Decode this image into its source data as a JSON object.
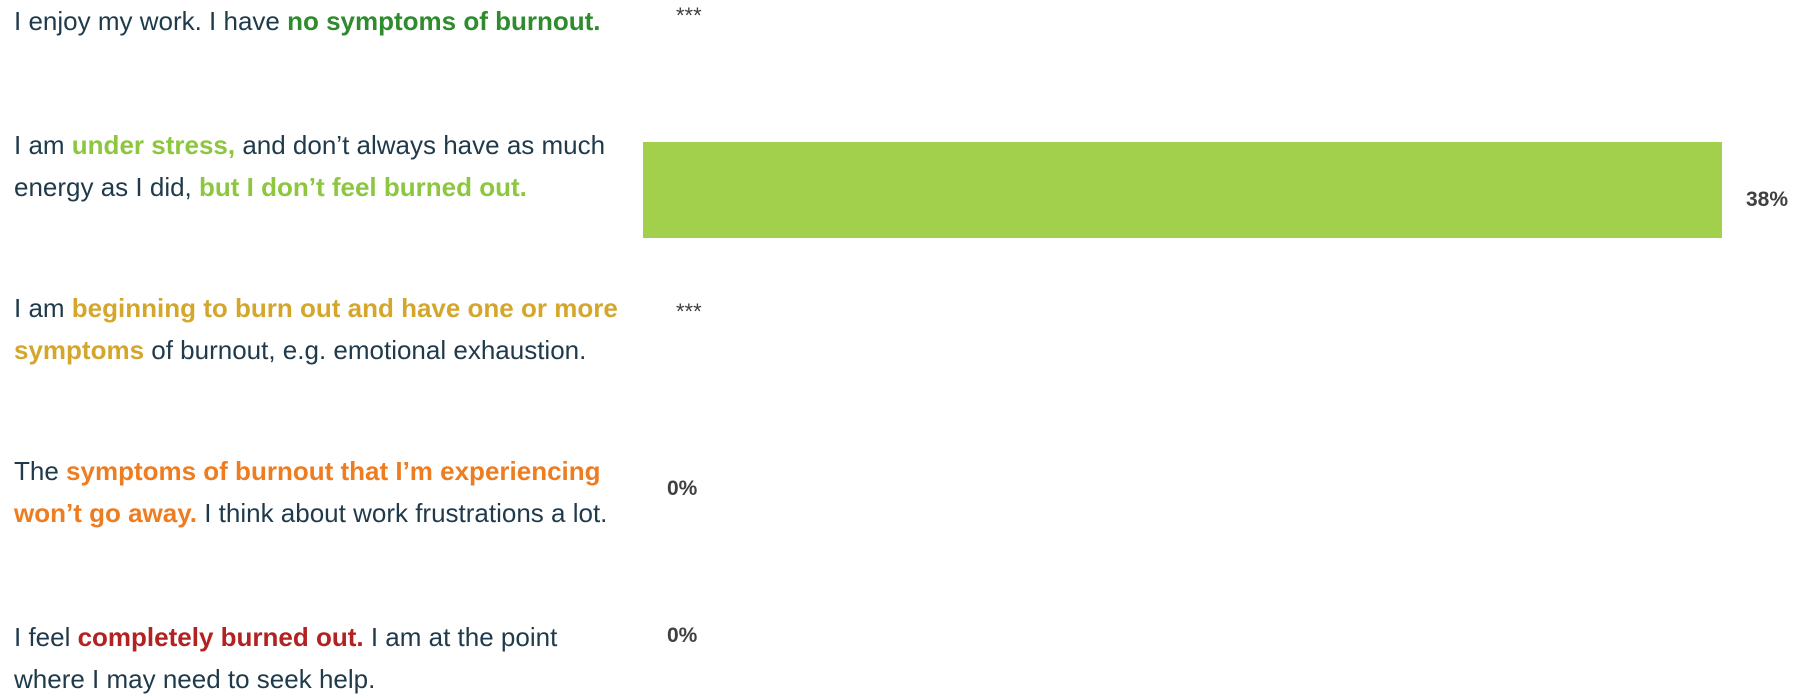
{
  "colors": {
    "dark_green": "#2e8b2e",
    "light_green": "#8dc63f",
    "gold": "#d4a72c",
    "orange": "#ee7d22",
    "red": "#b22222",
    "bar": "#a2cf4c",
    "text": "#1f3a4a"
  },
  "rows": [
    {
      "parts": [
        {
          "t": "I enjoy my work. I have ",
          "c": "text"
        },
        {
          "t": "no symptoms of burnout.",
          "c": "dark_green"
        }
      ],
      "value_label": "***"
    },
    {
      "parts": [
        {
          "t": "I am ",
          "c": "text"
        },
        {
          "t": "under stress,",
          "c": "light_green"
        },
        {
          "t": " and don’t always have as much energy as I did, ",
          "c": "text"
        },
        {
          "t": "but I don’t feel burned out.",
          "c": "light_green"
        }
      ],
      "value_label": "38%"
    },
    {
      "parts": [
        {
          "t": "I am ",
          "c": "text"
        },
        {
          "t": "beginning to burn out and have one or more symptoms",
          "c": "gold"
        },
        {
          "t": " of burnout, e.g. emotional exhaustion.",
          "c": "text"
        }
      ],
      "value_label": "***"
    },
    {
      "parts": [
        {
          "t": "The ",
          "c": "text"
        },
        {
          "t": "symptoms of burnout that I’m experiencing won’t go away.",
          "c": "orange"
        },
        {
          "t": " I think about work frustrations a lot.",
          "c": "text"
        }
      ],
      "value_label": "0%"
    },
    {
      "parts": [
        {
          "t": "I feel ",
          "c": "text"
        },
        {
          "t": "completely burned out.",
          "c": "red"
        },
        {
          "t": " I am at the point where I may need to seek help.",
          "c": "text"
        }
      ],
      "value_label": "0%"
    }
  ],
  "chart_data": {
    "type": "bar",
    "orientation": "horizontal",
    "categories": [
      "I enjoy my work. I have no symptoms of burnout.",
      "I am under stress, and don’t always have as much energy as I did, but I don’t feel burned out.",
      "I am beginning to burn out and have one or more symptoms of burnout, e.g. emotional exhaustion.",
      "The symptoms of burnout that I’m experiencing won’t go away. I think about work frustrations a lot.",
      "I feel completely burned out. I am at the point where I may need to seek help."
    ],
    "values": [
      null,
      38,
      null,
      0,
      0
    ],
    "value_labels": [
      "***",
      "38%",
      "***",
      "0%",
      "0%"
    ],
    "xlim": [
      0,
      38
    ],
    "grid": false,
    "legend": "none"
  }
}
